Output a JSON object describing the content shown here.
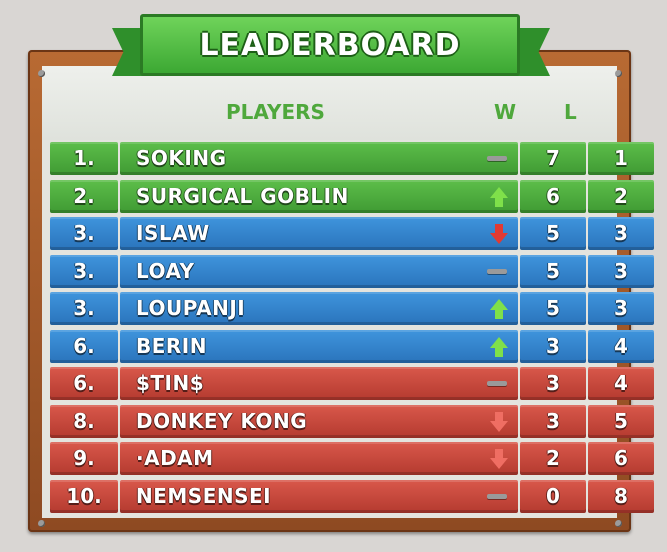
{
  "title": "LEADERBOARD",
  "columns": {
    "players": "PLAYERS",
    "wins": "W",
    "losses": "L"
  },
  "colors": {
    "green": "#4fae3c",
    "blue": "#3286cf",
    "red": "#c7483c",
    "frame": "#a65a2b"
  },
  "rows": [
    {
      "rank": "1.",
      "name": "SOKING",
      "trend": "same",
      "w": "7",
      "l": "1",
      "color": "green"
    },
    {
      "rank": "2.",
      "name": "SURGICAL GOBLIN",
      "trend": "up",
      "w": "6",
      "l": "2",
      "color": "green"
    },
    {
      "rank": "3.",
      "name": "ISLAW",
      "trend": "down",
      "w": "5",
      "l": "3",
      "color": "blue"
    },
    {
      "rank": "3.",
      "name": "LOAY",
      "trend": "same",
      "w": "5",
      "l": "3",
      "color": "blue"
    },
    {
      "rank": "3.",
      "name": "LOUPANJI",
      "trend": "up",
      "w": "5",
      "l": "3",
      "color": "blue"
    },
    {
      "rank": "6.",
      "name": "BERIN",
      "trend": "up",
      "w": "3",
      "l": "4",
      "color": "blue"
    },
    {
      "rank": "6.",
      "name": "$TIN$",
      "trend": "same",
      "w": "3",
      "l": "4",
      "color": "red"
    },
    {
      "rank": "8.",
      "name": "DONKEY KONG",
      "trend": "downlite",
      "w": "3",
      "l": "5",
      "color": "red"
    },
    {
      "rank": "9.",
      "name": "·ADAM",
      "trend": "downlite",
      "w": "2",
      "l": "6",
      "color": "red"
    },
    {
      "rank": "10.",
      "name": "NEMSENSEI",
      "trend": "same",
      "w": "0",
      "l": "8",
      "color": "red"
    }
  ]
}
